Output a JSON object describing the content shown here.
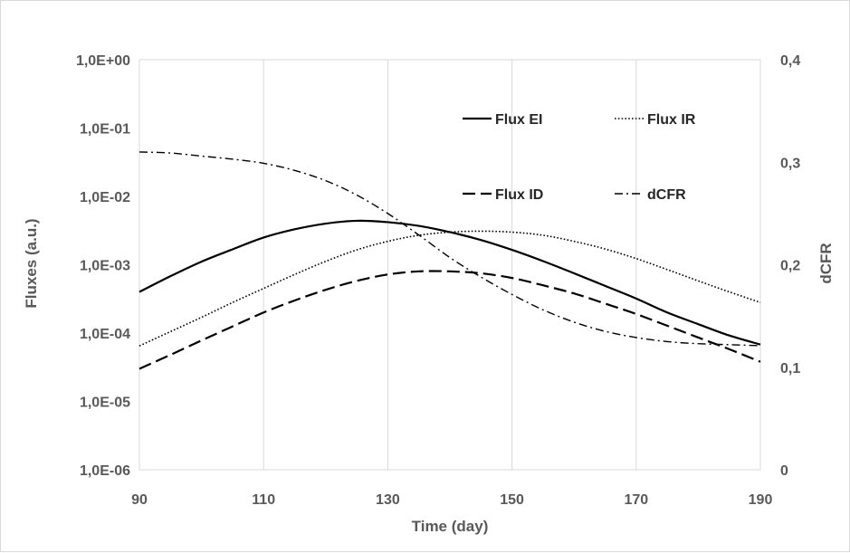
{
  "chart_data": {
    "type": "line",
    "title": "",
    "xlabel": "Time (day)",
    "ylabel": "Fluxes (a.u.)",
    "y2label": "dCFR",
    "xlim": [
      90,
      190
    ],
    "ylim": [
      1e-06,
      1
    ],
    "y2lim": [
      0,
      0.4
    ],
    "y_scale": "log",
    "grid": "vertical",
    "legend_position": "inside-top-right",
    "x_ticks": [
      "90",
      "110",
      "130",
      "150",
      "170",
      "190"
    ],
    "y_ticks": [
      "1,0E-06",
      "1,0E-05",
      "1,0E-04",
      "1,0E-03",
      "1,0E-02",
      "1,0E-01",
      "1,0E+00"
    ],
    "y2_ticks": [
      "0",
      "0,1",
      "0,2",
      "0,3",
      "0,4"
    ],
    "series": [
      {
        "name": "Flux EI",
        "axis": "left",
        "style": "solid",
        "color": "#000000",
        "x": [
          90,
          95,
          100,
          105,
          110,
          115,
          120,
          125,
          130,
          135,
          140,
          145,
          150,
          155,
          160,
          165,
          170,
          175,
          180,
          185,
          190
        ],
        "y": [
          0.0004,
          0.00068,
          0.00111,
          0.00168,
          0.0025,
          0.0033,
          0.004,
          0.0044,
          0.0042,
          0.0037,
          0.003,
          0.0023,
          0.00165,
          0.00113,
          0.00075,
          0.00049,
          0.00032,
          0.0002,
          0.000135,
          9.2e-05,
          6.8e-05
        ]
      },
      {
        "name": "Flux IR",
        "axis": "left",
        "style": "dotted",
        "color": "#000000",
        "x": [
          90,
          95,
          100,
          105,
          110,
          115,
          120,
          125,
          130,
          135,
          140,
          145,
          150,
          155,
          160,
          165,
          170,
          175,
          180,
          185,
          190
        ],
        "y": [
          6.5e-05,
          0.000105,
          0.00017,
          0.00028,
          0.00045,
          0.00072,
          0.00112,
          0.00165,
          0.0022,
          0.0027,
          0.003,
          0.0031,
          0.003,
          0.0027,
          0.0022,
          0.0017,
          0.00123,
          0.00085,
          0.00058,
          0.0004,
          0.00028
        ]
      },
      {
        "name": "Flux ID",
        "axis": "left",
        "style": "dashed",
        "color": "#000000",
        "x": [
          90,
          95,
          100,
          105,
          110,
          115,
          120,
          125,
          130,
          135,
          140,
          145,
          150,
          155,
          160,
          165,
          170,
          175,
          180,
          185,
          190
        ],
        "y": [
          3e-05,
          4.8e-05,
          7.8e-05,
          0.000125,
          0.0002,
          0.0003,
          0.00043,
          0.00058,
          0.00072,
          0.0008,
          0.0008,
          0.00075,
          0.00064,
          0.0005,
          0.00038,
          0.00027,
          0.00019,
          0.000128,
          8.6e-05,
          5.8e-05,
          3.8e-05
        ]
      },
      {
        "name": "dCFR",
        "axis": "right",
        "style": "dash-dot",
        "color": "#000000",
        "x": [
          90,
          95,
          100,
          105,
          110,
          115,
          120,
          125,
          130,
          135,
          140,
          145,
          150,
          155,
          160,
          165,
          170,
          175,
          180,
          185,
          190
        ],
        "y": [
          0.31,
          0.309,
          0.306,
          0.303,
          0.299,
          0.292,
          0.282,
          0.268,
          0.25,
          0.229,
          0.207,
          0.188,
          0.171,
          0.156,
          0.144,
          0.135,
          0.129,
          0.125,
          0.123,
          0.122,
          0.121
        ]
      }
    ]
  }
}
